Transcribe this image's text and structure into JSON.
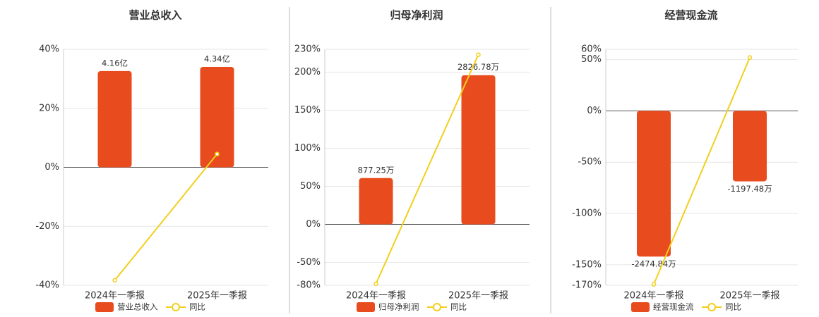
{
  "chart_data": [
    {
      "type": "bar",
      "title": "营业总收入",
      "categories": [
        "2024年一季报",
        "2025年一季报"
      ],
      "series": [
        {
          "name": "营业总收入",
          "type": "bar",
          "axis": "y2",
          "color": "#e84c1e",
          "values": [
            4.16,
            4.34
          ],
          "value_labels": [
            "4.16亿",
            "4.34亿"
          ]
        },
        {
          "name": "同比",
          "type": "line",
          "color": "#f2cf1d",
          "values": [
            -38.3,
            4.5
          ]
        }
      ],
      "ylim": [
        -40,
        40
      ],
      "yticks": [
        {
          "value": -40,
          "label": "-40%"
        },
        {
          "value": -20,
          "label": "-20%"
        },
        {
          "value": 0,
          "label": "0%"
        },
        {
          "value": 20,
          "label": "20%"
        },
        {
          "value": 40,
          "label": "40%"
        }
      ],
      "y2lim": [
        -5.1,
        5.1
      ],
      "grid": true
    },
    {
      "type": "bar",
      "title": "归母净利润",
      "categories": [
        "2024年一季报",
        "2025年一季报"
      ],
      "series": [
        {
          "name": "归母净利润",
          "type": "bar",
          "axis": "y2",
          "color": "#e84c1e",
          "values": [
            877.25,
            2826.78
          ],
          "value_labels": [
            "877.25万",
            "2826.78万"
          ]
        },
        {
          "name": "同比",
          "type": "line",
          "color": "#f2cf1d",
          "values": [
            -78,
            223
          ]
        }
      ],
      "ylim": [
        -80,
        230
      ],
      "yticks": [
        {
          "value": -80,
          "label": "-80%"
        },
        {
          "value": -50,
          "label": "-50%"
        },
        {
          "value": 0,
          "label": "0%"
        },
        {
          "value": 50,
          "label": "50%"
        },
        {
          "value": 100,
          "label": "100%"
        },
        {
          "value": 150,
          "label": "150%"
        },
        {
          "value": 200,
          "label": "200%"
        },
        {
          "value": 230,
          "label": "230%"
        }
      ],
      "y2lim": [
        -1154,
        3317
      ],
      "grid": true
    },
    {
      "type": "bar",
      "title": "经营现金流",
      "categories": [
        "2024年一季报",
        "2025年一季报"
      ],
      "series": [
        {
          "name": "经营现金流",
          "type": "bar",
          "axis": "y2",
          "color": "#e84c1e",
          "values": [
            -2474.84,
            -1197.48
          ],
          "value_labels": [
            "-2474.84万",
            "-1197.48万"
          ]
        },
        {
          "name": "同比",
          "type": "line",
          "color": "#f2cf1d",
          "values": [
            -169,
            52
          ]
        }
      ],
      "ylim": [
        -170,
        60
      ],
      "yticks": [
        {
          "value": -170,
          "label": "-170%"
        },
        {
          "value": -150,
          "label": "-150%"
        },
        {
          "value": -100,
          "label": "-100%"
        },
        {
          "value": -50,
          "label": "-50%"
        },
        {
          "value": 0,
          "label": "0%"
        },
        {
          "value": 50,
          "label": "50%"
        },
        {
          "value": 60,
          "label": "60%"
        }
      ],
      "y2lim": [
        -2963,
        1046
      ],
      "grid": true
    }
  ]
}
